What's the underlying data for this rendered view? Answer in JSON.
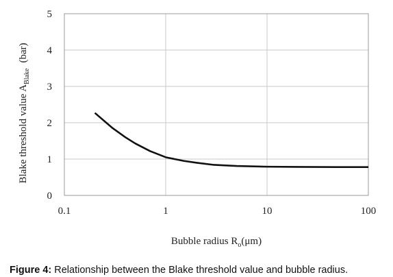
{
  "chart_data": {
    "type": "line",
    "xlabel": "Bubble radius R",
    "xlabel_sub": "o",
    "xlabel_end": "(μm)",
    "ylabel": "Blake threshold value A",
    "ylabel_sub": "Blake",
    "ylabel_end": "(bar)",
    "caption_label": "Figure 4:",
    "caption": " Relationship between the Blake threshold value and bubble radius.",
    "xscale": "log",
    "grid": true,
    "xlim": [
      0.1,
      100
    ],
    "xticks": [
      0.1,
      1,
      10,
      100
    ],
    "ylim": [
      0,
      5
    ],
    "yticks": [
      0,
      1,
      2,
      3,
      4,
      5
    ],
    "x": [
      0.2,
      0.3,
      0.4,
      0.5,
      0.7,
      1,
      1.5,
      2,
      3,
      5,
      10,
      20,
      50,
      100
    ],
    "series": [
      {
        "color": "#111111",
        "values": [
          2.27,
          1.85,
          1.6,
          1.43,
          1.22,
          1.05,
          0.95,
          0.9,
          0.84,
          0.81,
          0.79,
          0.785,
          0.78,
          0.78
        ]
      }
    ]
  }
}
